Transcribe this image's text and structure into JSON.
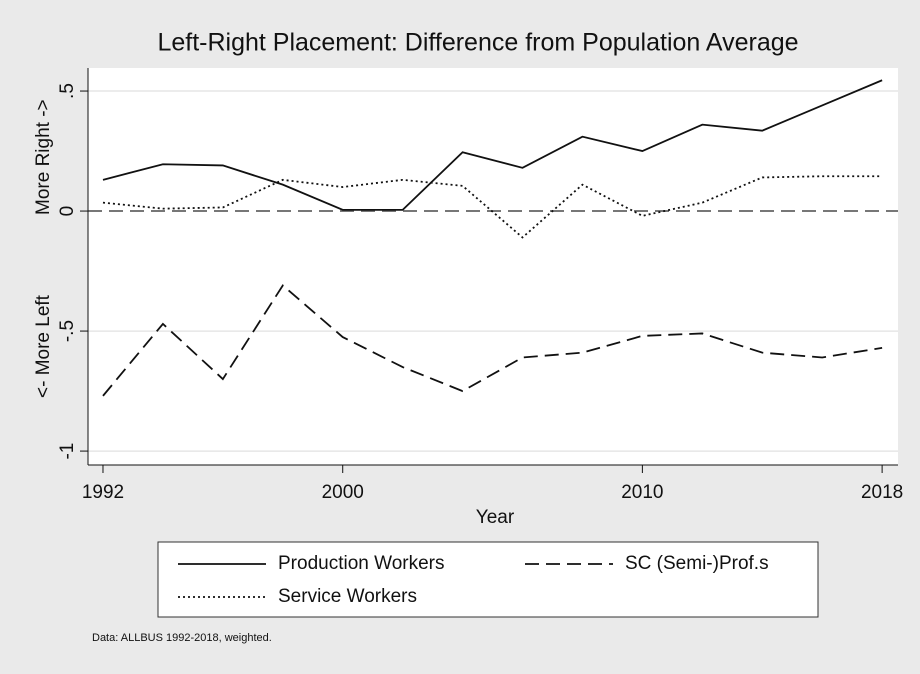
{
  "chart_data": {
    "type": "line",
    "title": "Left-Right Placement: Difference from Population Average",
    "xlabel": "Year",
    "ylabel": {
      "low": "<- More Left",
      "high": "More Right ->"
    },
    "note": "Data: ALLBUS 1992-2018, weighted.",
    "x": [
      1992,
      1994,
      1996,
      1998,
      2000,
      2002,
      2004,
      2006,
      2008,
      2010,
      2012,
      2014,
      2016,
      2018
    ],
    "series": [
      {
        "name": "Production Workers",
        "color": "#111111",
        "dash": "solid",
        "values": [
          0.13,
          0.195,
          0.19,
          0.11,
          0.005,
          0.005,
          0.245,
          0.18,
          0.31,
          0.25,
          0.36,
          0.335,
          0.44,
          0.545
        ]
      },
      {
        "name": "SC (Semi-)Prof.s",
        "color": "#111111",
        "dash": "dash",
        "values": [
          -0.77,
          -0.47,
          -0.7,
          -0.31,
          -0.525,
          -0.65,
          -0.75,
          -0.61,
          -0.59,
          -0.52,
          -0.51,
          -0.59,
          -0.61,
          -0.57
        ]
      },
      {
        "name": "Service Workers",
        "color": "#111111",
        "dash": "dot",
        "values": [
          0.035,
          0.01,
          0.015,
          0.13,
          0.1,
          0.13,
          0.105,
          -0.11,
          0.11,
          -0.02,
          0.035,
          0.14,
          0.145,
          0.145
        ]
      }
    ],
    "xlim": [
      1991.5,
      2018.53
    ],
    "xticks": [
      1992,
      2000,
      2010,
      2018
    ],
    "ylim": [
      -1.058,
      0.596
    ],
    "yticks": [
      -1,
      {
        "value": -0.5,
        "label": "-.5"
      },
      0,
      {
        "value": 0.5,
        "label": ".5"
      }
    ],
    "grid": true,
    "reference_line": 0,
    "legend": "bottom"
  }
}
